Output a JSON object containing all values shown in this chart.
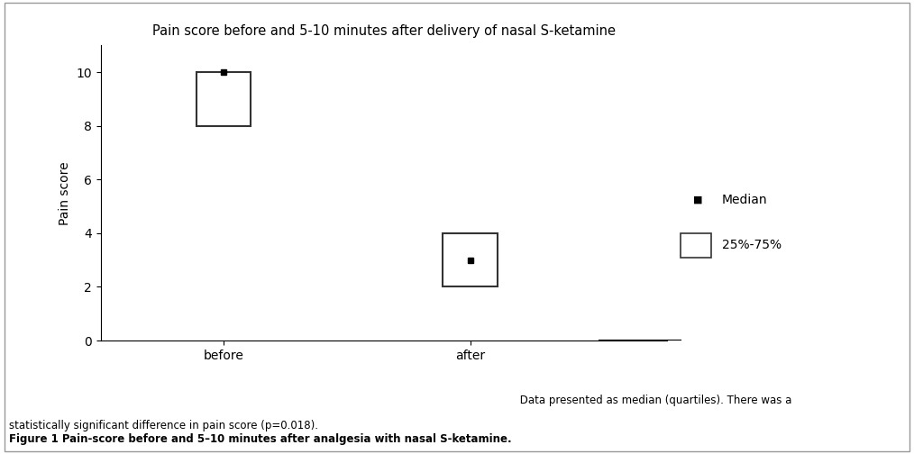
{
  "title": "Pain score before and 5-10 minutes after delivery of nasal S-ketamine",
  "ylabel": "Pain score",
  "categories": [
    "before",
    "after"
  ],
  "box_data": [
    {
      "q1": 8.0,
      "median": 10.0,
      "q3": 10.0,
      "x": 1
    },
    {
      "q1": 2.0,
      "median": 3.0,
      "q3": 4.0,
      "x": 2
    }
  ],
  "ylim": [
    0,
    11
  ],
  "yticks": [
    0,
    2,
    4,
    6,
    8,
    10
  ],
  "box_width": 0.22,
  "box_color": "white",
  "box_edgecolor": "#333333",
  "median_color": "black",
  "median_marker": "s",
  "median_markersize": 5,
  "title_fontsize": 10.5,
  "axis_fontsize": 10,
  "tick_fontsize": 10,
  "legend_fontsize": 10,
  "caption_bold": "Figure 1 Pain-score before and 5–10 minutes after analgesia with nasal S-ketamine.",
  "caption_normal": " Data presented as median (quartiles). There was a\nstatistically significant difference in pain score (p=0.018).",
  "background_color": "white",
  "border_color": "#999999"
}
